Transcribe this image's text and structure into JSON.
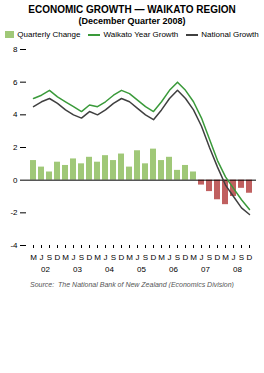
{
  "chart_data": {
    "type": "bar",
    "title": "ECONOMIC GROWTH — WAIKATO REGION",
    "subtitle": "(December Quarter 2008)",
    "categories": [
      "M",
      "J",
      "S",
      "D",
      "M",
      "J",
      "S",
      "D",
      "M",
      "J",
      "S",
      "D",
      "M",
      "J",
      "S",
      "D",
      "M",
      "J",
      "S",
      "D",
      "M",
      "J",
      "S",
      "D",
      "M",
      "J",
      "S",
      "D"
    ],
    "x_groups": [
      "02",
      "03",
      "04",
      "05",
      "06",
      "07",
      "08"
    ],
    "series": [
      {
        "name": "Quarterly Change",
        "type": "bar",
        "color": "#a0c878",
        "colors": [
          "#a0c878",
          "#a0c878",
          "#a0c878",
          "#a0c878",
          "#a0c878",
          "#a0c878",
          "#a0c878",
          "#a0c878",
          "#a0c878",
          "#a0c878",
          "#a0c878",
          "#a0c878",
          "#a0c878",
          "#a0c878",
          "#a0c878",
          "#a0c878",
          "#a0c878",
          "#a0c878",
          "#a0c878",
          "#a0c878",
          "#a0c878",
          "#c06060",
          "#c06060",
          "#c06060",
          "#c06060",
          "#c06060",
          "#c06060",
          "#c06060"
        ],
        "values": [
          1.2,
          0.8,
          0.5,
          1.1,
          0.9,
          1.3,
          1.0,
          1.4,
          1.1,
          1.5,
          1.2,
          1.6,
          0.8,
          1.8,
          1.0,
          1.9,
          1.2,
          1.4,
          0.6,
          0.9,
          0.5,
          -0.3,
          -0.7,
          -1.2,
          -1.5,
          -1.0,
          -0.5,
          -0.8
        ]
      },
      {
        "name": "Waikato Year Growth",
        "type": "line",
        "color": "#3a9a3a",
        "values": [
          5.0,
          5.2,
          5.5,
          5.1,
          4.8,
          4.5,
          4.2,
          4.6,
          4.5,
          4.8,
          5.2,
          5.5,
          5.3,
          4.9,
          4.5,
          4.2,
          4.8,
          5.5,
          6.0,
          5.5,
          4.8,
          3.8,
          2.5,
          1.2,
          0.2,
          -0.5,
          -1.2,
          -1.8
        ]
      },
      {
        "name": "National Growth",
        "type": "line",
        "color": "#404040",
        "values": [
          4.5,
          4.8,
          5.0,
          4.7,
          4.3,
          4.0,
          3.8,
          4.2,
          4.0,
          4.3,
          4.7,
          5.0,
          4.8,
          4.4,
          4.0,
          3.7,
          4.3,
          5.0,
          5.5,
          5.0,
          4.3,
          3.3,
          2.0,
          0.8,
          -0.3,
          -1.0,
          -1.7,
          -2.1
        ]
      }
    ],
    "ylim": [
      -4,
      8
    ],
    "yticks": [
      -4,
      -2,
      0,
      2,
      4,
      6,
      8
    ],
    "grid": false,
    "legend": "top",
    "source": "Source:  The National Bank of New Zealand (Economics Division)"
  }
}
